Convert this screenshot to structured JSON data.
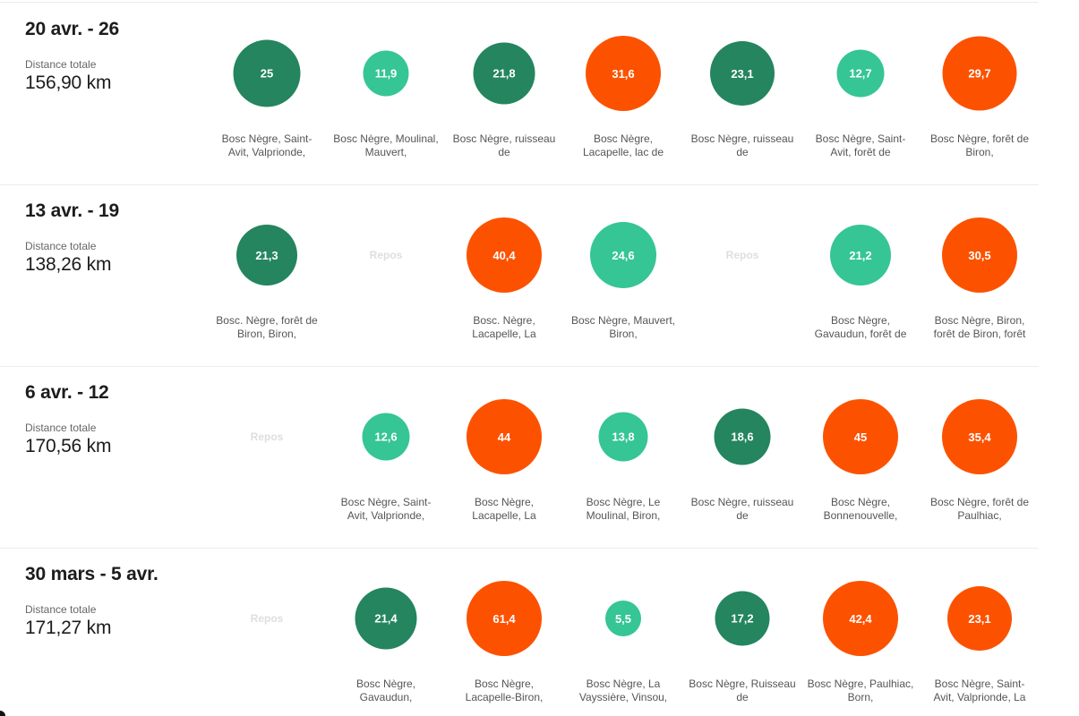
{
  "labels": {
    "distance": "Distance totale",
    "rest": "Repos"
  },
  "colors": {
    "dark": "#24855f",
    "light": "#36c595",
    "orange": "#fc5200"
  },
  "weeks": [
    {
      "title": "20 avr. - 26",
      "distance": "156,90 km",
      "days": [
        {
          "value": "25",
          "color": "dark",
          "places": "Bosc Nègre, Saint-Avit, Valprionde,"
        },
        {
          "value": "11,9",
          "color": "light",
          "places": "Bosc Nègre, Moulinal, Mauvert,"
        },
        {
          "value": "21,8",
          "color": "dark",
          "places": "Bosc Nègre, ruisseau de"
        },
        {
          "value": "31,6",
          "color": "orange",
          "places": "Bosc Nègre, Lacapelle, lac de"
        },
        {
          "value": "23,1",
          "color": "dark",
          "places": "Bosc Nègre, ruisseau de"
        },
        {
          "value": "12,7",
          "color": "light",
          "places": "Bosc Nègre, Saint-Avit, forêt de"
        },
        {
          "value": "29,7",
          "color": "orange",
          "places": "Bosc Nègre, forêt de Biron,"
        }
      ]
    },
    {
      "title": "13 avr. - 19",
      "distance": "138,26 km",
      "days": [
        {
          "value": "21,3",
          "color": "dark",
          "places": "Bosc. Nègre, forêt de Biron, Biron,"
        },
        {
          "rest": true
        },
        {
          "value": "40,4",
          "color": "orange",
          "places": "Bosc. Nègre, Lacapelle, La"
        },
        {
          "value": "24,6",
          "color": "light",
          "places": "Bosc Nègre, Mauvert, Biron,"
        },
        {
          "rest": true
        },
        {
          "value": "21,2",
          "color": "light",
          "places": "Bosc Nègre, Gavaudun, forêt de"
        },
        {
          "value": "30,5",
          "color": "orange",
          "places": "Bosc Nègre, Biron, forêt de Biron, forêt"
        }
      ]
    },
    {
      "title": "6 avr. - 12",
      "distance": "170,56 km",
      "days": [
        {
          "rest": true
        },
        {
          "value": "12,6",
          "color": "light",
          "places": "Bosc Nègre, Saint-Avit, Valprionde,"
        },
        {
          "value": "44",
          "color": "orange",
          "places": "Bosc Nègre, Lacapelle, La"
        },
        {
          "value": "13,8",
          "color": "light",
          "places": "Bosc Nègre, Le Moulinal, Biron,"
        },
        {
          "value": "18,6",
          "color": "dark",
          "places": "Bosc Nègre, ruisseau de"
        },
        {
          "value": "45",
          "color": "orange",
          "places": "Bosc Nègre, Bonnenouvelle,"
        },
        {
          "value": "35,4",
          "color": "orange",
          "places": "Bosc Nègre, forêt de Paulhiac,"
        }
      ]
    },
    {
      "title": "30 mars - 5 avr.",
      "distance": "171,27 km",
      "days": [
        {
          "rest": true
        },
        {
          "value": "21,4",
          "color": "dark",
          "places": "Bosc Nègre, Gavaudun,"
        },
        {
          "value": "61,4",
          "color": "orange",
          "places": "Bosc Nègre, Lacapelle-Biron,"
        },
        {
          "value": "5,5",
          "color": "light",
          "places": "Bosc Nègre, La Vayssière, Vinsou,"
        },
        {
          "value": "17,2",
          "color": "dark",
          "places": "Bosc Nègre, Ruisseau de"
        },
        {
          "value": "42,4",
          "color": "orange",
          "places": "Bosc Nègre, Paulhiac, Born,"
        },
        {
          "value": "23,1",
          "color": "orange",
          "places": "Bosc Nègre, Saint-Avit, Valprionde, La"
        }
      ]
    }
  ]
}
